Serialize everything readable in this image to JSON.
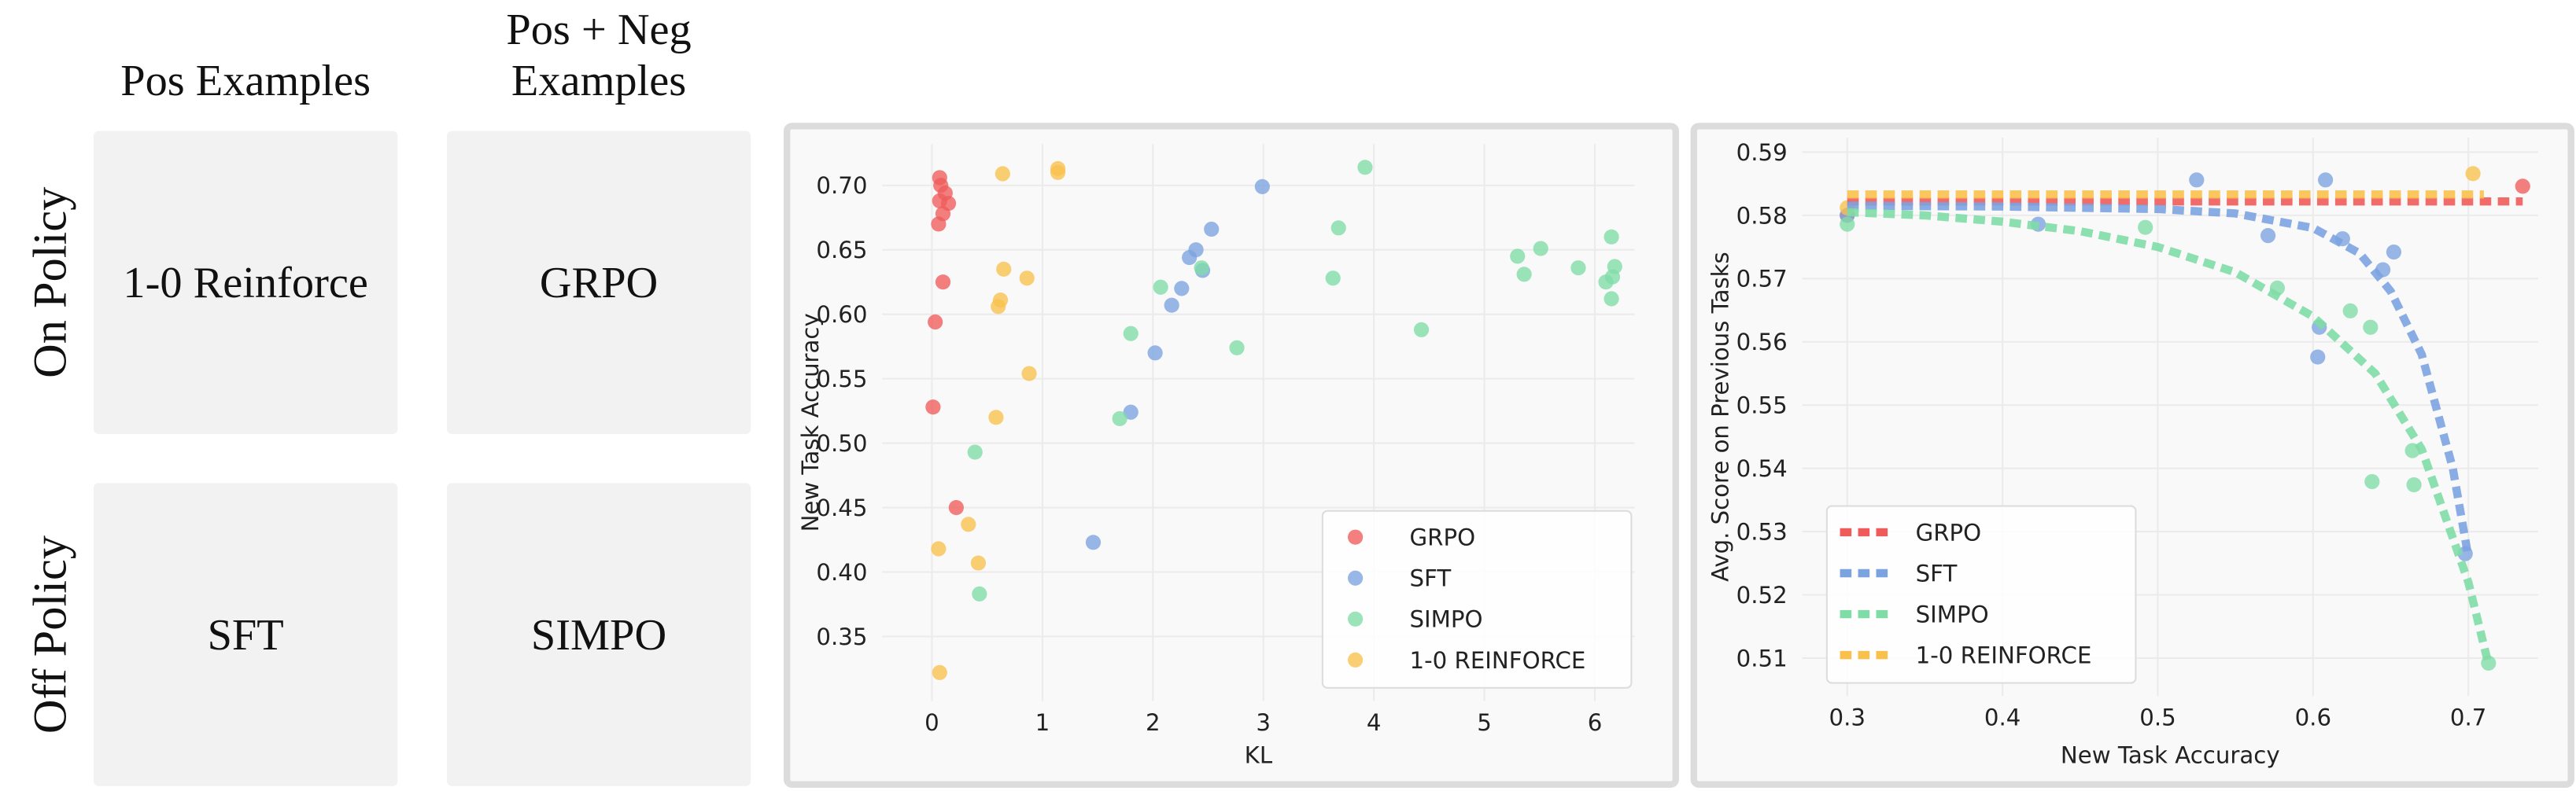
{
  "grid": {
    "columns": [
      {
        "header_lines": [
          "Pos Examples"
        ]
      },
      {
        "header_lines": [
          "Pos + Neg",
          "Examples"
        ]
      }
    ],
    "rows": [
      {
        "label": "On Policy",
        "cells": [
          "1-0 Reinforce",
          "GRPO"
        ]
      },
      {
        "label": "Off Policy",
        "cells": [
          "SFT",
          "SIMPO"
        ]
      }
    ]
  },
  "chart_data": [
    {
      "type": "scatter",
      "x_label": "KL",
      "y_label": "New Task Accuracy",
      "xlim": [
        -0.45,
        6.36
      ],
      "ylim": [
        0.3,
        0.732
      ],
      "xticks": [
        0,
        1,
        2,
        3,
        4,
        5,
        6
      ],
      "yticks": [
        0.35,
        {
          "value": 0.4,
          "label": "0.40"
        },
        0.45,
        {
          "value": 0.5,
          "label": "0.50"
        },
        0.55,
        {
          "value": 0.6,
          "label": "0.60"
        },
        0.65,
        {
          "value": 0.7,
          "label": "0.70"
        }
      ],
      "grid": true,
      "legend": "lower right",
      "series": [
        {
          "name": "GRPO",
          "color": "#ef5b5b",
          "x": [
            0.07,
            0.08,
            0.12,
            0.07,
            0.15,
            0.1,
            0.06,
            0.1,
            0.03,
            0.01,
            0.22
          ],
          "values": [
            0.706,
            0.7,
            0.694,
            0.688,
            0.686,
            0.678,
            0.67,
            0.625,
            0.594,
            0.528,
            0.45
          ]
        },
        {
          "name": "SFT",
          "color": "#7ba3e0",
          "x": [
            2.99,
            2.53,
            2.39,
            2.33,
            2.45,
            2.26,
            2.17,
            2.02,
            1.8,
            1.46
          ],
          "values": [
            0.699,
            0.666,
            0.65,
            0.644,
            0.634,
            0.62,
            0.607,
            0.57,
            0.524,
            0.423
          ]
        },
        {
          "name": "SIMPO",
          "color": "#7fdca6",
          "x": [
            3.92,
            3.68,
            3.63,
            2.44,
            2.07,
            1.8,
            2.76,
            4.43,
            1.7,
            0.39,
            0.43,
            5.3,
            5.51,
            5.36,
            5.85,
            6.15,
            6.18,
            6.16,
            6.1,
            6.15
          ],
          "values": [
            0.714,
            0.667,
            0.628,
            0.636,
            0.621,
            0.585,
            0.574,
            0.588,
            0.519,
            0.493,
            0.383,
            0.645,
            0.651,
            0.631,
            0.636,
            0.66,
            0.637,
            0.629,
            0.625,
            0.612
          ]
        },
        {
          "name": "1-0 REINFORCE",
          "color": "#f8c14d",
          "x": [
            0.64,
            1.14,
            1.14,
            0.65,
            0.86,
            0.62,
            0.6,
            0.88,
            0.58,
            0.33,
            0.42,
            0.06,
            0.07
          ],
          "values": [
            0.709,
            0.713,
            0.71,
            0.635,
            0.628,
            0.611,
            0.606,
            0.554,
            0.52,
            0.437,
            0.407,
            0.418,
            0.322
          ]
        }
      ]
    },
    {
      "type": "scatter",
      "x_label": "New Task Accuracy",
      "y_label": "Avg. Score on Previous Tasks",
      "xlim": [
        0.271,
        0.745
      ],
      "ylim": [
        0.504,
        0.5923
      ],
      "xticks": [
        0.3,
        0.4,
        0.5,
        0.6,
        0.7
      ],
      "yticks": [
        0.51,
        0.52,
        0.53,
        0.54,
        0.55,
        0.56,
        0.57,
        0.58,
        0.59
      ],
      "grid": true,
      "legend": "lower left",
      "series": [
        {
          "name": "GRPO",
          "color": "#ef5b5b",
          "x": [
            0.3,
            0.735
          ],
          "values": [
            0.58,
            0.5846
          ],
          "fit": {
            "x": [
              0.3,
              0.735
            ],
            "values": [
              0.5822,
              0.5822
            ]
          }
        },
        {
          "name": "SFT",
          "color": "#7ba3e0",
          "x": [
            0.525,
            0.608,
            0.571,
            0.619,
            0.652,
            0.645,
            0.604,
            0.603,
            0.698,
            0.423,
            0.3
          ],
          "values": [
            0.5856,
            0.5856,
            0.5768,
            0.5763,
            0.5742,
            0.5714,
            0.5623,
            0.5576,
            0.5265,
            0.5786,
            0.58
          ],
          "fit": {
            "x": [
              0.3,
              0.4,
              0.5,
              0.55,
              0.6,
              0.63,
              0.65,
              0.67,
              0.69,
              0.7
            ],
            "values": [
              0.5815,
              0.5814,
              0.581,
              0.5803,
              0.578,
              0.574,
              0.568,
              0.558,
              0.54,
              0.526
            ]
          }
        },
        {
          "name": "SIMPO",
          "color": "#7fdca6",
          "x": [
            0.3,
            0.492,
            0.577,
            0.624,
            0.637,
            0.664,
            0.638,
            0.665,
            0.713
          ],
          "values": [
            0.5786,
            0.5781,
            0.5685,
            0.5649,
            0.5623,
            0.5428,
            0.5379,
            0.5374,
            0.5092
          ],
          "fit": {
            "x": [
              0.3,
              0.35,
              0.4,
              0.45,
              0.5,
              0.55,
              0.6,
              0.64,
              0.67,
              0.7,
              0.713
            ],
            "values": [
              0.5805,
              0.58,
              0.579,
              0.5775,
              0.575,
              0.571,
              0.564,
              0.555,
              0.543,
              0.522,
              0.509
            ]
          }
        },
        {
          "name": "1-0 REINFORCE",
          "color": "#f8c14d",
          "x": [
            0.703,
            0.3
          ],
          "values": [
            0.5866,
            0.5812
          ],
          "fit": {
            "x": [
              0.3,
              0.71
            ],
            "values": [
              0.5833,
              0.5833
            ]
          }
        }
      ]
    }
  ]
}
